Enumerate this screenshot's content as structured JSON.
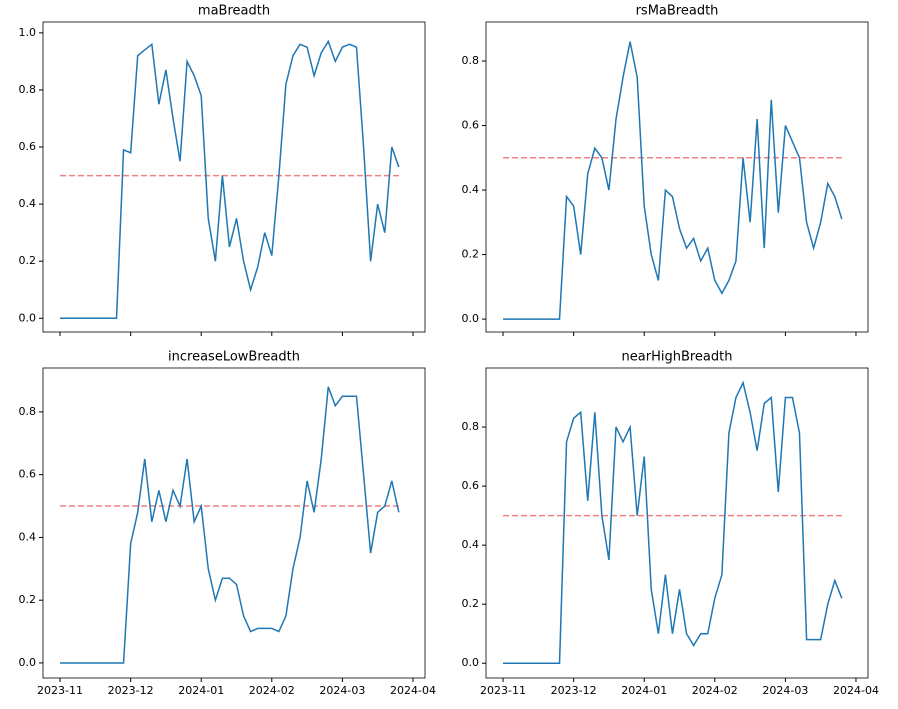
{
  "chart_data": [
    {
      "type": "line",
      "title": "maBreadth",
      "x": [
        2023.8333,
        2023.8417,
        2023.85,
        2023.8583,
        2023.8667,
        2023.875,
        2023.8833,
        2023.8917,
        2023.9,
        2023.9083,
        2023.9167,
        2023.925,
        2023.9333,
        2023.9417,
        2023.95,
        2023.9583,
        2023.9667,
        2023.975,
        2023.9833,
        2023.9917,
        2024.0,
        2024.0083,
        2024.0167,
        2024.025,
        2024.0333,
        2024.0417,
        2024.05,
        2024.0583,
        2024.0667,
        2024.075,
        2024.0833,
        2024.0917,
        2024.1,
        2024.1083,
        2024.1167,
        2024.125,
        2024.1333,
        2024.1417,
        2024.15,
        2024.1583,
        2024.1667,
        2024.175,
        2024.1833,
        2024.1917,
        2024.2,
        2024.2083,
        2024.2167,
        2024.225,
        2024.2333
      ],
      "series": [
        {
          "color": "#1f77b4",
          "values": [
            0,
            0,
            0,
            0,
            0,
            0,
            0,
            0,
            0,
            0.59,
            0.58,
            0.92,
            0.94,
            0.96,
            0.75,
            0.87,
            0.7,
            0.55,
            0.9,
            0.85,
            0.78,
            0.35,
            0.2,
            0.5,
            0.25,
            0.35,
            0.2,
            0.1,
            0.18,
            0.3,
            0.22,
            0.5,
            0.82,
            0.92,
            0.96,
            0.95,
            0.85,
            0.93,
            0.97,
            0.9,
            0.95,
            0.96,
            0.95,
            0.6,
            0.2,
            0.4,
            0.3,
            0.6,
            0.53
          ]
        }
      ],
      "reference_line": {
        "value": 0.5,
        "color": "#f08080"
      },
      "xlim": [
        2023.8132,
        2024.2642
      ],
      "xticks": [
        2023.8333,
        2023.9167,
        2024.0,
        2024.0833,
        2024.1667,
        2024.25
      ],
      "ylim": [
        -0.048,
        1.038
      ],
      "yticks": [
        {
          "value": 0,
          "label": "0.0"
        },
        0.2,
        0.4,
        0.6,
        0.8,
        {
          "value": 1,
          "label": "1.0"
        }
      ]
    },
    {
      "type": "line",
      "title": "rsMaBreadth",
      "x": [
        2023.8333,
        2023.8417,
        2023.85,
        2023.8583,
        2023.8667,
        2023.875,
        2023.8833,
        2023.8917,
        2023.9,
        2023.9083,
        2023.9167,
        2023.925,
        2023.9333,
        2023.9417,
        2023.95,
        2023.9583,
        2023.9667,
        2023.975,
        2023.9833,
        2023.9917,
        2024.0,
        2024.0083,
        2024.0167,
        2024.025,
        2024.0333,
        2024.0417,
        2024.05,
        2024.0583,
        2024.0667,
        2024.075,
        2024.0833,
        2024.0917,
        2024.1,
        2024.1083,
        2024.1167,
        2024.125,
        2024.1333,
        2024.1417,
        2024.15,
        2024.1583,
        2024.1667,
        2024.175,
        2024.1833,
        2024.1917,
        2024.2,
        2024.2083,
        2024.2167,
        2024.225,
        2024.2333
      ],
      "series": [
        {
          "color": "#1f77b4",
          "values": [
            0,
            0,
            0,
            0,
            0,
            0,
            0,
            0,
            0,
            0.38,
            0.35,
            0.2,
            0.45,
            0.53,
            0.5,
            0.4,
            0.62,
            0.75,
            0.86,
            0.75,
            0.35,
            0.2,
            0.12,
            0.4,
            0.38,
            0.28,
            0.22,
            0.25,
            0.18,
            0.22,
            0.12,
            0.08,
            0.12,
            0.18,
            0.5,
            0.3,
            0.62,
            0.22,
            0.68,
            0.33,
            0.6,
            0.55,
            0.5,
            0.3,
            0.22,
            0.3,
            0.42,
            0.38,
            0.31
          ]
        }
      ],
      "reference_line": {
        "value": 0.5,
        "color": "#f08080"
      },
      "xlim": [
        2023.8132,
        2024.2642
      ],
      "xticks": [
        2023.8333,
        2023.9167,
        2024.0,
        2024.0833,
        2024.1667,
        2024.25
      ],
      "ylim": [
        -0.04,
        0.921
      ],
      "yticks": [
        {
          "value": 0,
          "label": "0.0"
        },
        0.2,
        0.4,
        0.6,
        0.8
      ]
    },
    {
      "type": "line",
      "title": "increaseLowBreadth",
      "x": [
        2023.8333,
        2023.8417,
        2023.85,
        2023.8583,
        2023.8667,
        2023.875,
        2023.8833,
        2023.8917,
        2023.9,
        2023.9083,
        2023.9167,
        2023.925,
        2023.9333,
        2023.9417,
        2023.95,
        2023.9583,
        2023.9667,
        2023.975,
        2023.9833,
        2023.9917,
        2024.0,
        2024.0083,
        2024.0167,
        2024.025,
        2024.0333,
        2024.0417,
        2024.05,
        2024.0583,
        2024.0667,
        2024.075,
        2024.0833,
        2024.0917,
        2024.1,
        2024.1083,
        2024.1167,
        2024.125,
        2024.1333,
        2024.1417,
        2024.15,
        2024.1583,
        2024.1667,
        2024.175,
        2024.1833,
        2024.1917,
        2024.2,
        2024.2083,
        2024.2167,
        2024.225,
        2024.2333
      ],
      "series": [
        {
          "color": "#1f77b4",
          "values": [
            0,
            0,
            0,
            0,
            0,
            0,
            0,
            0,
            0,
            0,
            0.38,
            0.48,
            0.65,
            0.45,
            0.55,
            0.45,
            0.55,
            0.5,
            0.65,
            0.45,
            0.5,
            0.3,
            0.2,
            0.27,
            0.27,
            0.25,
            0.15,
            0.1,
            0.11,
            0.11,
            0.11,
            0.1,
            0.15,
            0.3,
            0.4,
            0.58,
            0.48,
            0.65,
            0.88,
            0.82,
            0.85,
            0.85,
            0.85,
            0.6,
            0.35,
            0.48,
            0.5,
            0.58,
            0.48
          ]
        }
      ],
      "reference_line": {
        "value": 0.5,
        "color": "#f08080"
      },
      "xlim": [
        2023.8132,
        2024.2642
      ],
      "xticks": [
        {
          "value": 2023.8333,
          "label": "2023-11"
        },
        {
          "value": 2023.9167,
          "label": "2023-12"
        },
        {
          "value": 2024.0,
          "label": "2024-01"
        },
        {
          "value": 2024.0833,
          "label": "2024-02"
        },
        {
          "value": 2024.1667,
          "label": "2024-03"
        },
        {
          "value": 2024.25,
          "label": "2024-04"
        }
      ],
      "ylim": [
        -0.048,
        0.94
      ],
      "yticks": [
        {
          "value": 0,
          "label": "0.0"
        },
        0.2,
        0.4,
        0.6,
        0.8
      ]
    },
    {
      "type": "line",
      "title": "nearHighBreadth",
      "x": [
        2023.8333,
        2023.8417,
        2023.85,
        2023.8583,
        2023.8667,
        2023.875,
        2023.8833,
        2023.8917,
        2023.9,
        2023.9083,
        2023.9167,
        2023.925,
        2023.9333,
        2023.9417,
        2023.95,
        2023.9583,
        2023.9667,
        2023.975,
        2023.9833,
        2023.9917,
        2024.0,
        2024.0083,
        2024.0167,
        2024.025,
        2024.0333,
        2024.0417,
        2024.05,
        2024.0583,
        2024.0667,
        2024.075,
        2024.0833,
        2024.0917,
        2024.1,
        2024.1083,
        2024.1167,
        2024.125,
        2024.1333,
        2024.1417,
        2024.15,
        2024.1583,
        2024.1667,
        2024.175,
        2024.1833,
        2024.1917,
        2024.2,
        2024.2083,
        2024.2167,
        2024.225,
        2024.2333
      ],
      "series": [
        {
          "color": "#1f77b4",
          "values": [
            0,
            0,
            0,
            0,
            0,
            0,
            0,
            0,
            0,
            0.75,
            0.83,
            0.85,
            0.55,
            0.85,
            0.5,
            0.35,
            0.8,
            0.75,
            0.8,
            0.5,
            0.7,
            0.25,
            0.1,
            0.3,
            0.1,
            0.25,
            0.1,
            0.06,
            0.1,
            0.1,
            0.22,
            0.3,
            0.78,
            0.9,
            0.95,
            0.85,
            0.72,
            0.88,
            0.9,
            0.58,
            0.9,
            0.9,
            0.78,
            0.08,
            0.08,
            0.08,
            0.2,
            0.28,
            0.22
          ]
        }
      ],
      "reference_line": {
        "value": 0.5,
        "color": "#f08080"
      },
      "xlim": [
        2023.8132,
        2024.2642
      ],
      "xticks": [
        {
          "value": 2023.8333,
          "label": "2023-11"
        },
        {
          "value": 2023.9167,
          "label": "2023-12"
        },
        {
          "value": 2024.0,
          "label": "2024-01"
        },
        {
          "value": 2024.0833,
          "label": "2024-02"
        },
        {
          "value": 2024.1667,
          "label": "2024-03"
        },
        {
          "value": 2024.25,
          "label": "2024-04"
        }
      ],
      "ylim": [
        -0.05,
        1.0
      ],
      "yticks": [
        {
          "value": 0,
          "label": "0.0"
        },
        0.2,
        0.4,
        0.6,
        0.8
      ]
    }
  ]
}
